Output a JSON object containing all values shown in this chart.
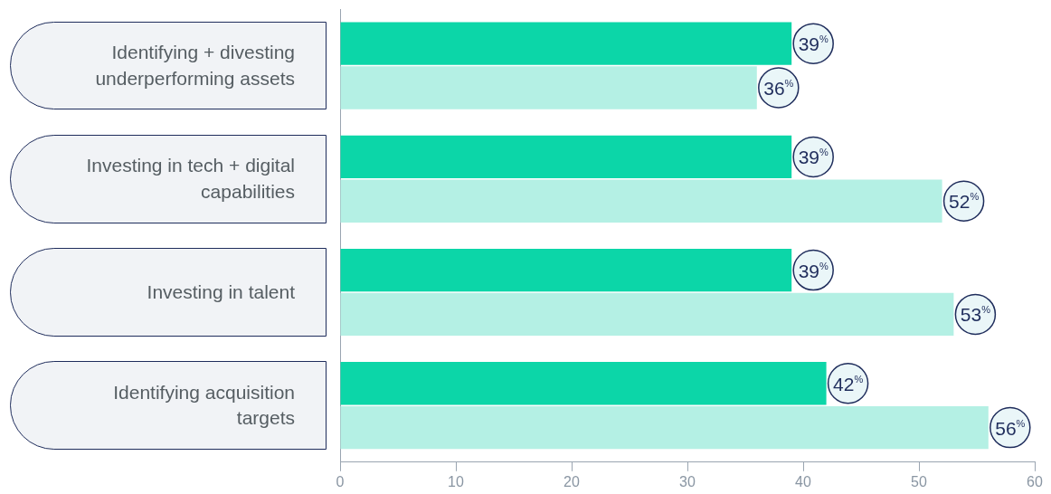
{
  "chart_data": {
    "type": "bar",
    "orientation": "horizontal",
    "categories": [
      "Identifying + divesting underperforming assets",
      "Investing in tech + digital capabilities",
      "Investing in talent",
      "Identifying acquisition targets"
    ],
    "series": [
      {
        "color": "#0cd6a8",
        "values": [
          39,
          39,
          39,
          42
        ],
        "value_labels": [
          "39$^{%}$",
          "39$^{%}$",
          "39$^{%}$",
          "42$^{%}$"
        ]
      },
      {
        "color": "#b4f0e4",
        "values": [
          36,
          52,
          53,
          56
        ],
        "value_labels": [
          "36$^{%}$",
          "52$^{%}$",
          "53$^{%}$",
          "56$^{%}$"
        ]
      }
    ],
    "xlim": [
      0,
      60
    ],
    "xticks": [
      0,
      10,
      20,
      30,
      40,
      50,
      60
    ],
    "grid": false,
    "legend": false
  }
}
